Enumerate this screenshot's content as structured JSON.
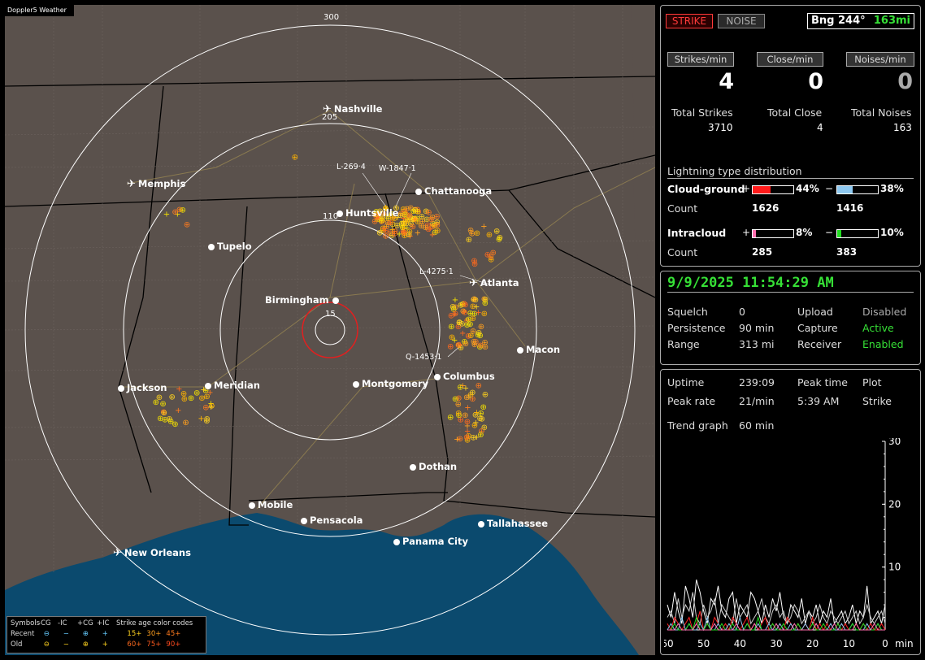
{
  "brand": "Doppler5 Weather",
  "map": {
    "range_rings": [
      {
        "label": "15"
      },
      {
        "label": "110"
      },
      {
        "label": "205"
      },
      {
        "label": "300"
      }
    ],
    "cities": [
      {
        "name": "Nashville",
        "marker": "airport-icon"
      },
      {
        "name": "Memphis",
        "marker": "airport-icon"
      },
      {
        "name": "Chattanooga",
        "marker": "dot"
      },
      {
        "name": "Huntsville",
        "marker": "dot"
      },
      {
        "name": "Tupelo",
        "marker": "dot"
      },
      {
        "name": "Atlanta",
        "marker": "airport-icon"
      },
      {
        "name": "Birmingham",
        "marker": "dot"
      },
      {
        "name": "Macon",
        "marker": "dot"
      },
      {
        "name": "Columbus",
        "marker": "dot"
      },
      {
        "name": "Montgomery",
        "marker": "dot"
      },
      {
        "name": "Jackson",
        "marker": "dot"
      },
      {
        "name": "Meridian",
        "marker": "dot"
      },
      {
        "name": "Dothan",
        "marker": "dot"
      },
      {
        "name": "Mobile",
        "marker": "dot"
      },
      {
        "name": "Pensacola",
        "marker": "dot"
      },
      {
        "name": "Tallahassee",
        "marker": "dot"
      },
      {
        "name": "Panama City",
        "marker": "dot"
      },
      {
        "name": "New Orleans",
        "marker": "airport-icon"
      }
    ],
    "strike_labels": [
      "L-269·4",
      "W-1847·1",
      "L-4275·1",
      "Q-1453·1"
    ],
    "legend": {
      "symbols_label": "Symbols",
      "cols": [
        "-CG",
        "-IC",
        "+CG",
        "+IC"
      ],
      "recent_label": "Recent",
      "old_label": "Old",
      "age_title": "Strike age color codes",
      "ages_recent": [
        "15+",
        "30+",
        "45+"
      ],
      "ages_old": [
        "60+",
        "75+",
        "90+"
      ],
      "age_colors_recent": [
        "#ffd21e",
        "#ff9f1e",
        "#ff7b1e"
      ],
      "age_colors_old": [
        "#ff6a1e",
        "#ff5a1e",
        "#ff4a1e"
      ]
    }
  },
  "panel_top": {
    "mode_strike": "STRIKE",
    "mode_noise": "NOISE",
    "bearing_label": "Bng 244°",
    "distance": "163mi",
    "strikes_per_min_label": "Strikes/min",
    "close_per_min_label": "Close/min",
    "noises_per_min_label": "Noises/min",
    "strikes_per_min": "4",
    "close_per_min": "0",
    "noises_per_min": "0",
    "total_strikes_label": "Total Strikes",
    "total_close_label": "Total Close",
    "total_noises_label": "Total Noises",
    "total_strikes": "3710",
    "total_close": "4",
    "total_noises": "163",
    "dist_title": "Lightning type distribution",
    "cg_label": "Cloud-ground",
    "ic_label": "Intracloud",
    "count_label": "Count",
    "plus": "+",
    "minus": "−",
    "cg_pos_pct_text": "44%",
    "cg_neg_pct_text": "38%",
    "cg_pos_count": "1626",
    "cg_neg_count": "1416",
    "ic_pos_pct_text": "8%",
    "ic_neg_pct_text": "10%",
    "ic_pos_count": "285",
    "ic_neg_count": "383",
    "cg_pos_pct": 0.44,
    "cg_neg_pct": 0.38,
    "ic_pos_pct": 0.08,
    "ic_neg_pct": 0.1,
    "colors": {
      "cg_pos": "#ff1a1a",
      "cg_neg": "#8ec8f0",
      "ic_pos": "#ff70b0",
      "ic_neg": "#22dd22"
    }
  },
  "panel_status": {
    "datetime": "9/9/2025 11:54:29 AM",
    "squelch_label": "Squelch",
    "squelch": "0",
    "persistence_label": "Persistence",
    "persistence": "90 min",
    "range_label": "Range",
    "range": "313 mi",
    "upload_label": "Upload",
    "upload": "Disabled",
    "capture_label": "Capture",
    "capture": "Active",
    "receiver_label": "Receiver",
    "receiver": "Enabled"
  },
  "panel_trend": {
    "uptime_label": "Uptime",
    "uptime": "239:09",
    "peak_rate_label": "Peak rate",
    "peak_rate": "21/min",
    "peak_time_label": "Peak time",
    "peak_time": "5:39 AM",
    "plot_label": "Plot",
    "plot": "Strike",
    "trend_label": "Trend graph",
    "trend_span": "60 min",
    "y_ticks": [
      "30",
      "20",
      "10"
    ],
    "x_ticks": [
      "60",
      "50",
      "40",
      "30",
      "20",
      "10",
      "0"
    ],
    "x_unit": "min"
  },
  "chart_data": {
    "type": "line",
    "title": "",
    "xlabel": "min",
    "ylabel": "",
    "x": [
      60,
      59,
      58,
      57,
      56,
      55,
      54,
      53,
      52,
      51,
      50,
      49,
      48,
      47,
      46,
      45,
      44,
      43,
      42,
      41,
      40,
      39,
      38,
      37,
      36,
      35,
      34,
      33,
      32,
      31,
      30,
      29,
      28,
      27,
      26,
      25,
      24,
      23,
      22,
      21,
      20,
      19,
      18,
      17,
      16,
      15,
      14,
      13,
      12,
      11,
      10,
      9,
      8,
      7,
      6,
      5,
      4,
      3,
      2,
      1,
      0
    ],
    "xlim": [
      60,
      0
    ],
    "ylim": [
      0,
      30
    ],
    "series": [
      {
        "color": "#ffffff",
        "values": [
          4,
          2,
          6,
          3,
          1,
          7,
          5,
          2,
          8,
          6,
          3,
          1,
          5,
          4,
          7,
          3,
          2,
          5,
          6,
          1,
          4,
          3,
          2,
          6,
          5,
          3,
          1,
          4,
          2,
          5,
          3,
          6,
          2,
          1,
          4,
          3,
          2,
          5,
          1,
          3,
          2,
          4,
          1,
          3,
          2,
          5,
          1,
          2,
          3,
          1,
          2,
          4,
          1,
          3,
          2,
          7,
          1,
          2,
          3,
          1,
          4
        ]
      },
      {
        "color": "#cccccc",
        "values": [
          2,
          3,
          1,
          5,
          2,
          4,
          3,
          6,
          2,
          1,
          4,
          2,
          3,
          5,
          1,
          4,
          3,
          2,
          1,
          5,
          2,
          3,
          4,
          1,
          2,
          3,
          5,
          2,
          1,
          3,
          4,
          2,
          3,
          1,
          2,
          4,
          3,
          1,
          2,
          3,
          1,
          2,
          4,
          2,
          1,
          3,
          2,
          1,
          2,
          3,
          1,
          2,
          3,
          1,
          2,
          4,
          2,
          1,
          2,
          3,
          1
        ]
      },
      {
        "color": "#ff2222",
        "values": [
          1,
          0,
          2,
          1,
          0,
          1,
          2,
          0,
          1,
          3,
          0,
          1,
          0,
          2,
          1,
          0,
          1,
          0,
          2,
          1,
          0,
          1,
          2,
          0,
          1,
          0,
          1,
          2,
          0,
          1,
          0,
          1,
          0,
          2,
          1,
          0,
          1,
          0,
          1,
          0,
          2,
          0,
          1,
          0,
          1,
          0,
          0,
          1,
          0,
          1,
          0,
          0,
          1,
          0,
          1,
          0,
          1,
          0,
          0,
          1,
          0
        ]
      },
      {
        "color": "#8ec8f0",
        "values": [
          0,
          1,
          0,
          0,
          2,
          0,
          1,
          0,
          0,
          1,
          0,
          2,
          0,
          0,
          1,
          0,
          0,
          1,
          0,
          0,
          2,
          0,
          1,
          0,
          0,
          1,
          0,
          0,
          1,
          0,
          0,
          1,
          0,
          0,
          1,
          0,
          0,
          0,
          1,
          0,
          0,
          1,
          0,
          0,
          0,
          1,
          0,
          0,
          1,
          0,
          0,
          1,
          0,
          0,
          0,
          1,
          0,
          0,
          1,
          0,
          0
        ]
      },
      {
        "color": "#22dd22",
        "values": [
          0,
          0,
          1,
          0,
          0,
          0,
          1,
          0,
          2,
          0,
          0,
          1,
          0,
          0,
          0,
          1,
          0,
          0,
          1,
          0,
          0,
          0,
          1,
          0,
          0,
          2,
          0,
          0,
          0,
          1,
          0,
          0,
          1,
          0,
          0,
          0,
          1,
          0,
          0,
          0,
          1,
          0,
          0,
          1,
          0,
          0,
          0,
          1,
          0,
          0,
          0,
          1,
          0,
          0,
          1,
          0,
          0,
          0,
          1,
          0,
          0
        ]
      },
      {
        "color": "#ff70b0",
        "values": [
          0,
          0,
          0,
          1,
          0,
          0,
          0,
          0,
          1,
          0,
          0,
          0,
          0,
          1,
          0,
          0,
          0,
          0,
          0,
          1,
          0,
          0,
          0,
          0,
          1,
          0,
          0,
          0,
          0,
          0,
          1,
          0,
          0,
          0,
          0,
          1,
          0,
          0,
          0,
          0,
          0,
          1,
          0,
          0,
          0,
          0,
          1,
          0,
          0,
          0,
          0,
          0,
          1,
          0,
          0,
          0,
          0,
          1,
          0,
          0,
          0
        ]
      }
    ]
  }
}
